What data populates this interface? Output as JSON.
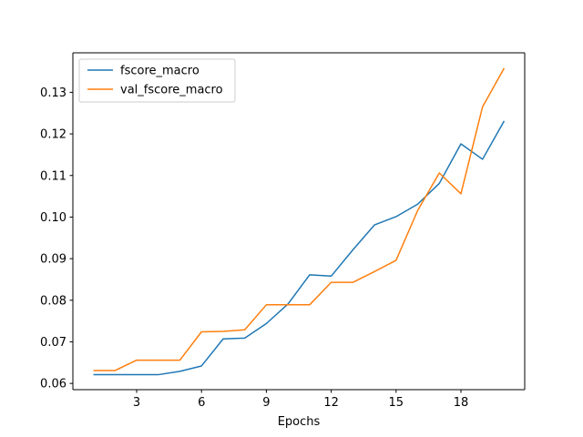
{
  "chart_data": {
    "type": "line",
    "title": "",
    "xlabel": "Epochs",
    "ylabel": "",
    "xlim": [
      0.05,
      20.95
    ],
    "ylim": [
      0.0585,
      0.1395
    ],
    "xticks": [
      3,
      6,
      9,
      12,
      15,
      18
    ],
    "yticks": [
      0.06,
      0.07,
      0.08,
      0.09,
      0.1,
      0.11,
      0.12,
      0.13
    ],
    "ytick_labels": [
      "0.06",
      "0.07",
      "0.08",
      "0.09",
      "0.10",
      "0.11",
      "0.12",
      "0.13"
    ],
    "grid": false,
    "legend_position": "upper-left",
    "x": [
      1,
      2,
      3,
      4,
      5,
      6,
      7,
      8,
      9,
      10,
      11,
      12,
      13,
      14,
      15,
      16,
      17,
      18,
      19,
      20
    ],
    "series": [
      {
        "name": "fscore_macro",
        "color": "#1f77b4",
        "values": [
          0.0621,
          0.0621,
          0.0621,
          0.0621,
          0.0629,
          0.0642,
          0.0707,
          0.0709,
          0.0744,
          0.0791,
          0.0861,
          0.0858,
          0.0921,
          0.0981,
          0.1001,
          0.1031,
          0.1081,
          0.1176,
          0.1139,
          0.1231
        ]
      },
      {
        "name": "val_fscore_macro",
        "color": "#ff7f0e",
        "values": [
          0.0631,
          0.0631,
          0.0656,
          0.0656,
          0.0656,
          0.0724,
          0.0725,
          0.0729,
          0.0789,
          0.0789,
          0.0789,
          0.0843,
          0.0843,
          0.0869,
          0.0896,
          0.1016,
          0.1106,
          0.1056,
          0.1265,
          0.1358
        ]
      }
    ]
  }
}
